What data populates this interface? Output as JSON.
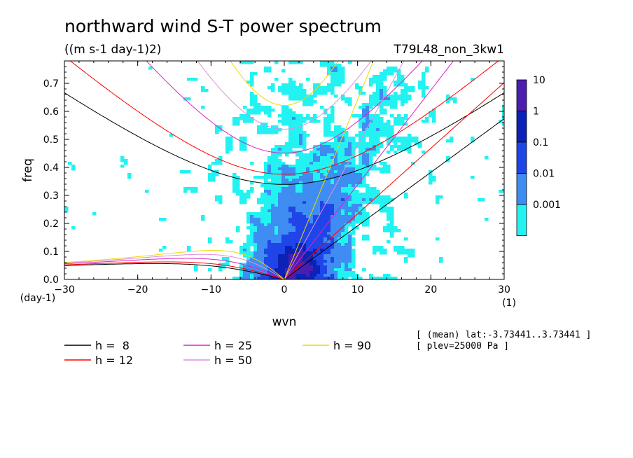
{
  "title": "northward wind S-T power spectrum",
  "units": "((m s-1 day-1)2)",
  "run_label": "T79L48_non_3kw1",
  "annotation": {
    "line1": "[ (mean) lat:-3.73441..3.73441 ]",
    "line2": "[ plev=25000 Pa ]"
  },
  "colorbar": {
    "levels": [
      "10",
      "1",
      "0.1",
      "0.01",
      "0.001"
    ],
    "colors": [
      "#4a1fb0",
      "#0a22b8",
      "#1f45e8",
      "#3f8cf2",
      "#22f2f2"
    ]
  },
  "legend": [
    {
      "label": "h =  8",
      "color": "#000000"
    },
    {
      "label": "h = 12",
      "color": "#ff0000"
    },
    {
      "label": "h = 25",
      "color": "#e01ec8"
    },
    {
      "label": "h = 50",
      "color": "#e08ee0"
    },
    {
      "label": "h = 90",
      "color": "#f0d800"
    }
  ],
  "chart_data": {
    "type": "heatmap",
    "title": "northward wind S-T power spectrum",
    "subtitle": "((m s-1 day-1)2)",
    "xlabel": "wvn",
    "ylabel": "freq",
    "x_unit": "(1)",
    "y_unit": "(day-1)",
    "xlim": [
      -30,
      30
    ],
    "ylim": [
      0,
      0.78
    ],
    "xticks": [
      "-30",
      "-20",
      "-10",
      "0",
      "10",
      "20",
      "30"
    ],
    "yticks": [
      "0.0",
      "0.1",
      "0.2",
      "0.3",
      "0.4",
      "0.5",
      "0.6",
      "0.7"
    ],
    "contour_levels": [
      0.001,
      0.01,
      0.1,
      1,
      10
    ],
    "power_regions": [
      {
        "level": 0.001,
        "x_range": [
          -30,
          30
        ],
        "y_range": [
          0,
          0.78
        ],
        "note": "patchy background"
      },
      {
        "level": 0.01,
        "x_range": [
          -8,
          18
        ],
        "y_range": [
          0,
          0.55
        ]
      },
      {
        "level": 0.1,
        "x_range": [
          -6,
          12
        ],
        "y_range": [
          0,
          0.5
        ]
      },
      {
        "level": 1,
        "x_range": [
          -2,
          8
        ],
        "y_range": [
          0,
          0.25
        ]
      }
    ],
    "dispersion_curves": [
      {
        "h": 8,
        "color": "#000000"
      },
      {
        "h": 12,
        "color": "#ff0000"
      },
      {
        "h": 25,
        "color": "#e01ec8"
      },
      {
        "h": 50,
        "color": "#e08ee0"
      },
      {
        "h": 90,
        "color": "#f0d800"
      }
    ],
    "grid": false
  }
}
